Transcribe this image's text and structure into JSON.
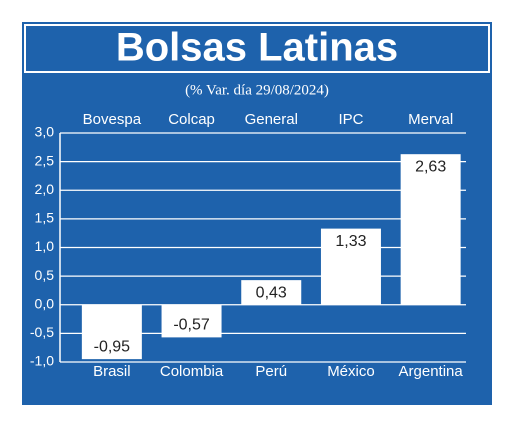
{
  "chart_data": {
    "type": "bar",
    "title": "Bolsas Latinas",
    "subtitle": "(% Var. día 29/08/2024)",
    "categories": [
      "Brasil",
      "Colombia",
      "Perú",
      "México",
      "Argentina"
    ],
    "top_labels": [
      "Bovespa",
      "Colcap",
      "General",
      "IPC",
      "Merval"
    ],
    "values": [
      -0.95,
      -0.57,
      0.43,
      1.33,
      2.63
    ],
    "value_labels": [
      "-0,95",
      "-0,57",
      "0,43",
      "1,33",
      "2,63"
    ],
    "color": "#ffffff",
    "ylim": [
      -1,
      3
    ],
    "yticks": [
      {
        "value": -1,
        "label": "-1,0"
      },
      {
        "value": -0.5,
        "label": "-0,5"
      },
      {
        "value": 0,
        "label": "0,0"
      },
      {
        "value": 0.5,
        "label": "0,5"
      },
      {
        "value": 1,
        "label": "1,0"
      },
      {
        "value": 1.5,
        "label": "1,5"
      },
      {
        "value": 2,
        "label": "2,0"
      },
      {
        "value": 2.5,
        "label": "2,5"
      },
      {
        "value": 3,
        "label": "3,0"
      }
    ],
    "grid": true
  }
}
